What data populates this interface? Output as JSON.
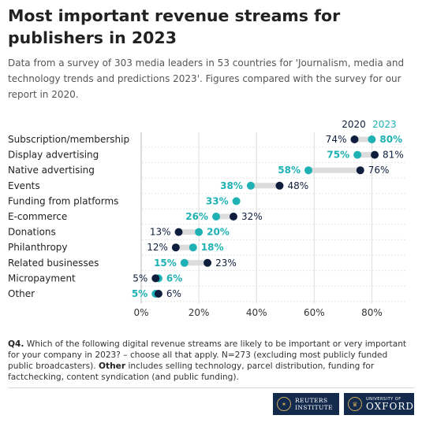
{
  "title": "Most important revenue streams for publishers in 2023",
  "subtitle": "Data from a survey of 303 media leaders in 53 countries for 'Journalism, media and technology trends and predictions 2023'. Figures compared with the survey for our report in 2020.",
  "footnote": {
    "q_label": "Q4.",
    "q_text": " Which of the following digital revenue streams are likely to be important or very important for your company in 2023? – choose all that apply. N=273 (excluding most publicly funded public broadcasters). ",
    "other_label": "Other",
    "other_text": " includes selling technology, parcel distribution, funding for factchecking, content syndication (and public funding)."
  },
  "logos": {
    "reuters_line1": "REUTERS",
    "reuters_line2": "INSTITUTE",
    "oxford_line1": "UNIVERSITY OF",
    "oxford_line2": "OXFORD"
  },
  "colors": {
    "y2020": "#0f1e3d",
    "y2023": "#1fb1b3",
    "connector": "#dcdcdc",
    "grid": "#dddddd"
  },
  "chart_data": {
    "type": "dumbbell",
    "categories": [
      "Subscription/membership",
      "Display advertising",
      "Native advertising",
      "Events",
      "Funding from platforms",
      "E-commerce",
      "Donations",
      "Philanthropy",
      "Related businesses",
      "Micropayment",
      "Other"
    ],
    "series": [
      {
        "name": "2020",
        "values": [
          74,
          81,
          76,
          48,
          null,
          32,
          13,
          12,
          23,
          5,
          6
        ]
      },
      {
        "name": "2023",
        "values": [
          80,
          75,
          58,
          38,
          33,
          26,
          20,
          18,
          15,
          6,
          5
        ]
      }
    ],
    "xlim": [
      0,
      90
    ],
    "xticks": [
      0,
      20,
      40,
      60,
      80
    ],
    "tick_suffix": "%",
    "grid": true,
    "legend": "top-right"
  }
}
